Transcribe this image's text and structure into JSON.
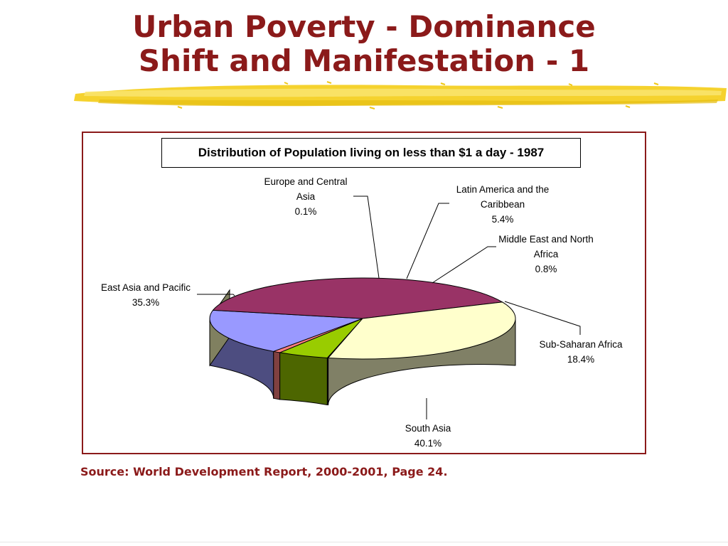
{
  "slide": {
    "title_line1": "Urban Poverty - Dominance",
    "title_line2": "Shift and Manifestation - 1",
    "source": "Source: World Development Report, 2000-2001, Page 24."
  },
  "chart_data": {
    "type": "pie",
    "title": "Distribution of Population living on less than $1 a day - 1987",
    "three_d": true,
    "labels_lines": [
      [
        "Europe and Central",
        "Asia"
      ],
      [
        "Latin America and the",
        "Caribbean"
      ],
      [
        "Middle East and North",
        "Africa"
      ],
      [
        "Sub-Saharan Africa"
      ],
      [
        "South Asia"
      ],
      [
        "East Asia and Pacific"
      ]
    ],
    "categories": [
      "Europe and Central Asia",
      "Latin America and the Caribbean",
      "Middle East and North Africa",
      "Sub-Saharan Africa",
      "South Asia",
      "East Asia and Pacific"
    ],
    "values": [
      0.1,
      5.4,
      0.8,
      18.4,
      40.1,
      35.3
    ],
    "value_labels": [
      "0.1%",
      "5.4%",
      "0.8%",
      "18.4%",
      "40.1%",
      "35.3%"
    ],
    "colors": [
      "#7f3f5f",
      "#99cc00",
      "#ff8080",
      "#9999ff",
      "#993366",
      "#ffffcc"
    ]
  }
}
